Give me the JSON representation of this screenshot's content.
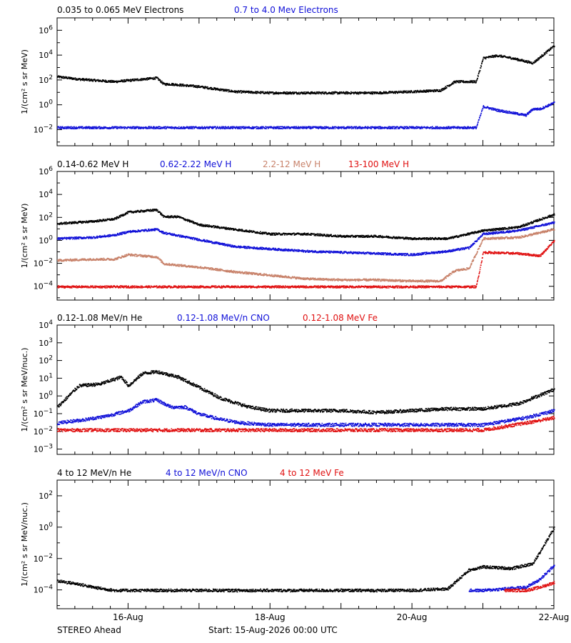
{
  "colors": {
    "black": "#000000",
    "blue": "#1010d8",
    "tan": "#c8826a",
    "red": "#e01010"
  },
  "footer": {
    "left": "STEREO Ahead",
    "start": "Start: 15-Aug-2026 00:00 UTC"
  },
  "x_axis": {
    "range_days": [
      15,
      22
    ],
    "ticks": [
      16,
      18,
      20,
      22
    ],
    "tick_labels": [
      "16-Aug",
      "18-Aug",
      "20-Aug",
      "22-Aug"
    ]
  },
  "chart_data": [
    {
      "type": "scatter",
      "ylabel": "1/(cm² s sr MeV)",
      "ylim_log10": [
        -3.3,
        7
      ],
      "y_ticks_log10": [
        -2,
        0,
        2,
        4,
        6
      ],
      "legend": [
        "0.035 to 0.065 MeV Electrons",
        "0.7 to 4.0 Mev Electrons"
      ],
      "series": [
        {
          "name": "0.035 to 0.065 MeV Electrons",
          "color": "black",
          "x": [
            15.0,
            15.3,
            15.8,
            16.4,
            16.5,
            16.6,
            17.0,
            17.5,
            18.0,
            18.5,
            19.0,
            19.5,
            20.0,
            20.4,
            20.6,
            20.9,
            21.0,
            21.2,
            21.4,
            21.7,
            22.0
          ],
          "log10_y": [
            2.3,
            2.1,
            1.9,
            2.2,
            1.7,
            1.7,
            1.5,
            1.1,
            1.0,
            1.0,
            1.0,
            1.0,
            1.1,
            1.2,
            1.9,
            1.9,
            3.8,
            4.0,
            3.8,
            3.4,
            4.8
          ]
        },
        {
          "name": "0.7 to 4.0 Mev Electrons",
          "color": "blue",
          "x": [
            15.0,
            16.0,
            17.0,
            18.0,
            19.0,
            20.0,
            20.9,
            21.0,
            21.2,
            21.6,
            21.7,
            21.8,
            22.0
          ],
          "log10_y": [
            -1.8,
            -1.8,
            -1.8,
            -1.8,
            -1.8,
            -1.8,
            -1.8,
            -0.1,
            -0.4,
            -0.8,
            -0.3,
            -0.3,
            0.2
          ]
        }
      ]
    },
    {
      "type": "scatter",
      "ylabel": "1/(cm² s sr MeV)",
      "ylim_log10": [
        -5.2,
        6
      ],
      "y_ticks_log10": [
        -4,
        -2,
        0,
        2,
        4,
        6
      ],
      "legend": [
        "0.14-0.62 MeV H",
        "0.62-2.22 MeV H",
        "2.2-12 MeV H",
        "13-100 MeV H"
      ],
      "series": [
        {
          "name": "0.14-0.62 MeV H",
          "color": "black",
          "x": [
            15.0,
            15.5,
            15.8,
            16.0,
            16.4,
            16.5,
            16.7,
            17.0,
            17.5,
            18.0,
            18.5,
            19.0,
            19.5,
            20.0,
            20.5,
            21.0,
            21.5,
            22.0
          ],
          "log10_y": [
            1.5,
            1.7,
            1.9,
            2.5,
            2.7,
            2.1,
            2.1,
            1.4,
            1.0,
            0.6,
            0.6,
            0.4,
            0.4,
            0.2,
            0.2,
            0.9,
            1.2,
            2.3
          ]
        },
        {
          "name": "0.62-2.22 MeV H",
          "color": "blue",
          "x": [
            15.0,
            15.5,
            15.8,
            16.0,
            16.4,
            16.5,
            17.0,
            17.5,
            18.0,
            18.5,
            19.0,
            19.5,
            20.0,
            20.5,
            20.8,
            21.0,
            21.5,
            22.0
          ],
          "log10_y": [
            0.2,
            0.3,
            0.5,
            0.8,
            1.0,
            0.7,
            0.1,
            -0.5,
            -0.7,
            -0.9,
            -1.0,
            -1.1,
            -1.2,
            -0.9,
            -0.6,
            0.6,
            0.9,
            1.6
          ]
        },
        {
          "name": "2.2-12 MeV H",
          "color": "tan",
          "x": [
            15.0,
            15.5,
            15.8,
            16.0,
            16.4,
            16.5,
            17.0,
            17.5,
            18.0,
            18.5,
            19.0,
            19.5,
            20.0,
            20.4,
            20.6,
            20.8,
            21.0,
            21.5,
            22.0
          ],
          "log10_y": [
            -1.7,
            -1.6,
            -1.6,
            -1.2,
            -1.4,
            -2.0,
            -2.3,
            -2.7,
            -3.0,
            -3.3,
            -3.4,
            -3.4,
            -3.5,
            -3.5,
            -2.6,
            -2.4,
            0.2,
            0.3,
            1.0
          ]
        },
        {
          "name": "13-100 MeV H",
          "color": "red",
          "x": [
            15.0,
            16.0,
            17.0,
            18.0,
            19.0,
            20.0,
            20.9,
            21.0,
            21.5,
            21.8,
            22.0
          ],
          "log10_y": [
            -4.0,
            -4.0,
            -4.0,
            -4.0,
            -4.0,
            -4.0,
            -4.0,
            -1.0,
            -1.1,
            -1.3,
            0.0
          ]
        }
      ]
    },
    {
      "type": "scatter",
      "ylabel": "1/(cm² s sr MeV/nuc.)",
      "ylim_log10": [
        -3.3,
        4
      ],
      "y_ticks_log10": [
        -3,
        -2,
        -1,
        0,
        1,
        2,
        3,
        4
      ],
      "legend": [
        "0.12-1.08 MeV/n He",
        "0.12-1.08 MeV/n CNO",
        "0.12-1.08 MeV Fe"
      ],
      "series": [
        {
          "name": "0.12-1.08 MeV/n He",
          "color": "black",
          "x": [
            15.0,
            15.3,
            15.6,
            15.9,
            16.0,
            16.2,
            16.4,
            16.7,
            17.0,
            17.3,
            17.7,
            18.0,
            18.5,
            19.0,
            19.5,
            20.0,
            20.5,
            21.0,
            21.5,
            22.0
          ],
          "log10_y": [
            -0.6,
            0.6,
            0.7,
            1.1,
            0.6,
            1.3,
            1.4,
            1.1,
            0.5,
            -0.1,
            -0.6,
            -0.8,
            -0.8,
            -0.8,
            -0.9,
            -0.8,
            -0.7,
            -0.7,
            -0.4,
            0.4
          ]
        },
        {
          "name": "0.12-1.08 MeV/n CNO",
          "color": "blue",
          "x": [
            15.0,
            15.4,
            15.7,
            16.0,
            16.2,
            16.4,
            16.6,
            16.8,
            17.0,
            17.3,
            17.6,
            18.0,
            19.0,
            20.0,
            21.0,
            21.6,
            22.0
          ],
          "log10_y": [
            -1.5,
            -1.3,
            -1.1,
            -0.8,
            -0.3,
            -0.2,
            -0.6,
            -0.6,
            -1.0,
            -1.3,
            -1.5,
            -1.6,
            -1.6,
            -1.6,
            -1.6,
            -1.2,
            -0.8
          ]
        },
        {
          "name": "0.12-1.08 MeV Fe",
          "color": "red",
          "x": [
            15.0,
            16.0,
            17.0,
            18.0,
            19.0,
            20.0,
            21.0,
            21.6,
            22.0
          ],
          "log10_y": [
            -1.9,
            -1.9,
            -1.9,
            -1.9,
            -1.9,
            -1.9,
            -1.9,
            -1.5,
            -1.2
          ]
        }
      ]
    },
    {
      "type": "scatter",
      "ylabel": "1/(cm² s sr MeV/nuc.)",
      "ylim_log10": [
        -5.2,
        3
      ],
      "y_ticks_log10": [
        -4,
        -2,
        0,
        2
      ],
      "legend": [
        "4 to 12 MeV/n He",
        "4 to 12 MeV/n CNO",
        "4 to 12 MeV Fe"
      ],
      "series": [
        {
          "name": "4 to 12 MeV/n He",
          "color": "black",
          "x": [
            15.0,
            15.3,
            15.5,
            15.8,
            16.5,
            17.0,
            18.0,
            19.0,
            20.0,
            20.5,
            20.8,
            21.0,
            21.4,
            21.7,
            22.0
          ],
          "log10_y": [
            -3.4,
            -3.6,
            -3.8,
            -4.0,
            -4.0,
            -4.0,
            -4.0,
            -4.0,
            -4.0,
            -3.9,
            -2.7,
            -2.5,
            -2.6,
            -2.3,
            0.0
          ]
        },
        {
          "name": "4 to 12 MeV/n CNO",
          "color": "blue",
          "x": [
            20.8,
            21.0,
            21.3,
            21.6,
            21.8,
            22.0
          ],
          "log10_y": [
            -4.0,
            -4.0,
            -3.9,
            -3.8,
            -3.3,
            -2.4
          ]
        },
        {
          "name": "4 to 12 MeV Fe",
          "color": "red",
          "x": [
            21.3,
            21.6,
            21.8,
            22.0
          ],
          "log10_y": [
            -4.0,
            -4.0,
            -3.8,
            -3.5
          ]
        }
      ]
    }
  ]
}
